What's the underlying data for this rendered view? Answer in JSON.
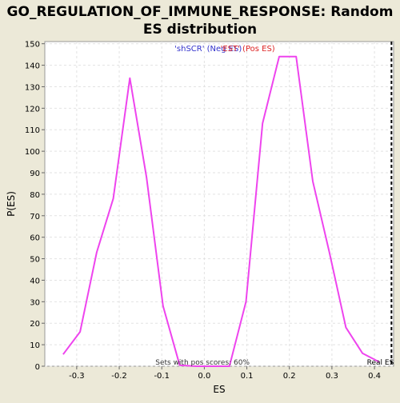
{
  "chart_data": {
    "type": "line",
    "title_line1": "GO_REGULATION_OF_IMMUNE_RESPONSE: Random",
    "title_line2": "ES distribution",
    "xlabel": "ES",
    "ylabel": "P(ES)",
    "xlim": [
      -0.375,
      0.445
    ],
    "ylim": [
      0,
      151
    ],
    "x_ticks": [
      -0.3,
      -0.2,
      -0.1,
      0.0,
      0.1,
      0.2,
      0.3,
      0.4
    ],
    "x_tick_labels": [
      "-0.3",
      "-0.2",
      "-0.1",
      "0.0",
      "0.1",
      "0.2",
      "0.3",
      "0.4"
    ],
    "y_ticks": [
      0,
      10,
      20,
      30,
      40,
      50,
      60,
      70,
      80,
      90,
      100,
      110,
      120,
      130,
      140,
      150
    ],
    "grid": true,
    "series": [
      {
        "color": "#EE44EE",
        "x": [
          -0.332,
          -0.292,
          -0.253,
          -0.214,
          -0.175,
          -0.136,
          -0.097,
          -0.058,
          -0.019,
          0.02,
          0.059,
          0.098,
          0.137,
          0.176,
          0.216,
          0.255,
          0.294,
          0.333,
          0.372,
          0.411
        ],
        "y": [
          5.5,
          16,
          53,
          78,
          134,
          88,
          28,
          0.5,
          0,
          0,
          0,
          30,
          113,
          144,
          144,
          86,
          53,
          18,
          6,
          2
        ]
      }
    ],
    "legend_neg": {
      "label": "'shSCR' (Neg ES)",
      "color": "#3333CC"
    },
    "legend_pos": {
      "label": "'EST' (Pos ES)",
      "color": "#DD2222"
    },
    "bottom_annotation": "Sets with pos scores: 60%",
    "real_es": {
      "label": "Real ES",
      "x": 0.44,
      "color": "#000000"
    }
  }
}
